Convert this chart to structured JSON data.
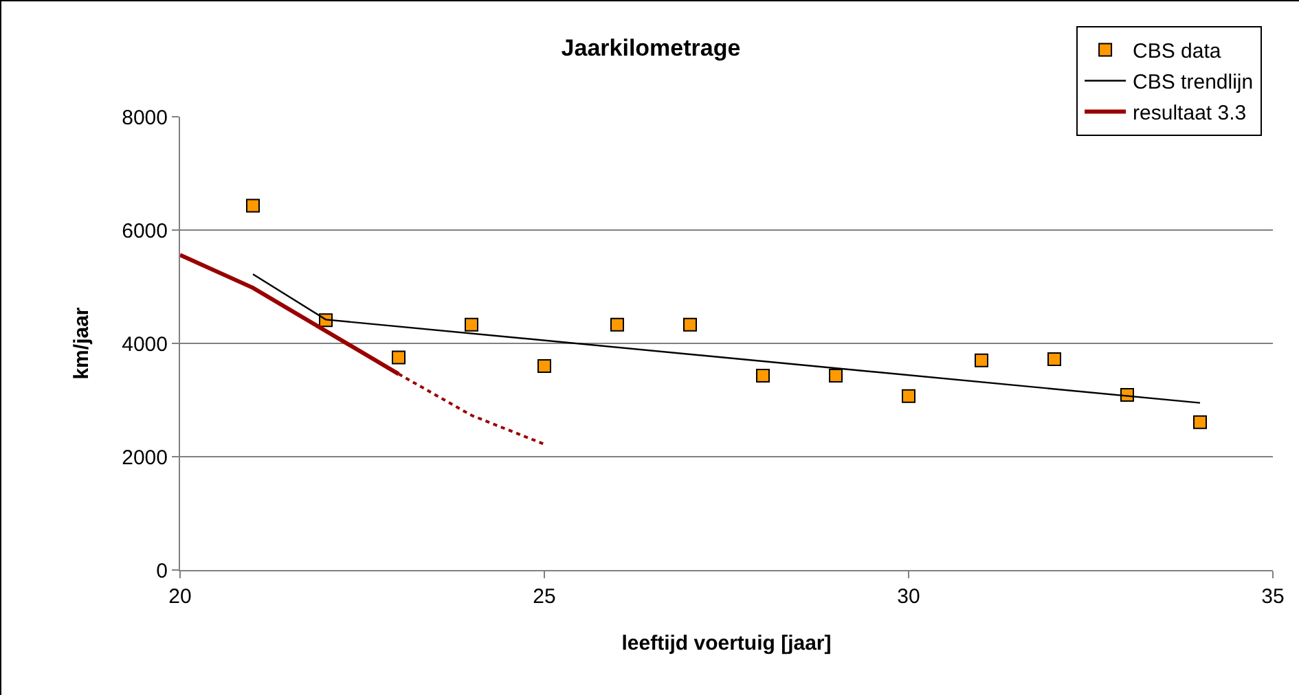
{
  "chart_data": {
    "type": "scatter",
    "title": "Jaarkilometrage",
    "xlabel": "leeftijd voertuig [jaar]",
    "ylabel": "km/jaar",
    "xlim": [
      20,
      35
    ],
    "xticks": [
      20,
      25,
      30,
      35
    ],
    "ylim": [
      0,
      8000
    ],
    "yticks": [
      0,
      2000,
      4000,
      6000,
      8000
    ],
    "grid": "y",
    "legend": "top right",
    "series": [
      {
        "name": "CBS data",
        "marker": "square",
        "color": "#ff9900",
        "x": [
          21,
          22,
          23,
          24,
          25,
          26,
          27,
          28,
          29,
          30,
          31,
          32,
          33,
          34
        ],
        "values": [
          6430,
          4410,
          3750,
          4330,
          3600,
          4330,
          4330,
          3430,
          3430,
          3070,
          3700,
          3720,
          3090,
          2610
        ]
      },
      {
        "name": "CBS trendlijn",
        "type": "line",
        "marker": "none",
        "line_style": "solid",
        "color": "#000000",
        "x": [
          21,
          22,
          34
        ],
        "values": [
          5220,
          4420,
          2950
        ]
      },
      {
        "name": "resultaat 3.3",
        "type": "line",
        "marker": "none",
        "line_style": "solid",
        "color": "#990000",
        "x": [
          20,
          21,
          23
        ],
        "values": [
          5560,
          4980,
          3460
        ]
      },
      {
        "type": "line",
        "marker": "none",
        "line_style": "dotted",
        "color": "#990000",
        "x": [
          23,
          24,
          25
        ],
        "values": [
          3460,
          2730,
          2220
        ]
      }
    ]
  }
}
